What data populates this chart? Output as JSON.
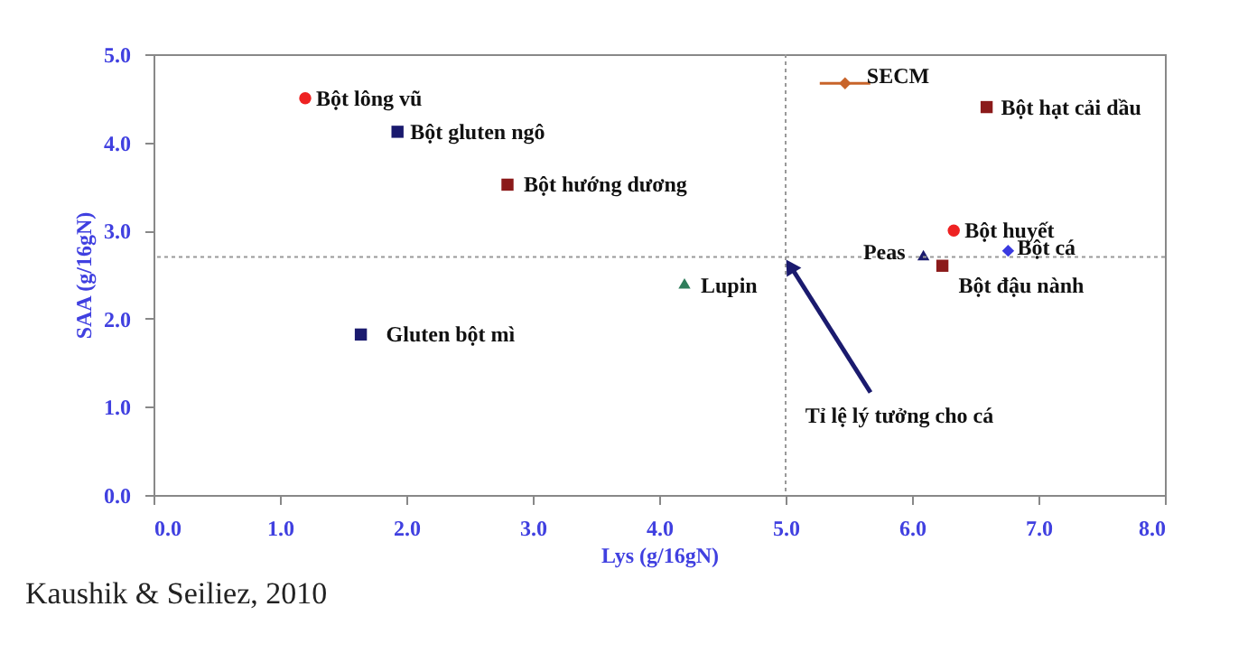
{
  "chart_data": {
    "type": "scatter",
    "xlabel": "Lys (g/16gN)",
    "ylabel": "SAA (g/16gN)",
    "xlim": [
      0,
      8
    ],
    "ylim": [
      0,
      5
    ],
    "xticks": [
      {
        "value": 0,
        "label": "0.0"
      },
      {
        "value": 1,
        "label": "1.0"
      },
      {
        "value": 2,
        "label": "2.0"
      },
      {
        "value": 3,
        "label": "3.0"
      },
      {
        "value": 4,
        "label": "4.0"
      },
      {
        "value": 5,
        "label": "5.0"
      },
      {
        "value": 6,
        "label": "6.0"
      },
      {
        "value": 7,
        "label": "7.0"
      },
      {
        "value": 8,
        "label": "8.0"
      }
    ],
    "yticks": [
      {
        "value": 0,
        "label": "0.0"
      },
      {
        "value": 1,
        "label": "1.0"
      },
      {
        "value": 2,
        "label": "2.0"
      },
      {
        "value": 3,
        "label": "3.0"
      },
      {
        "value": 4,
        "label": "4.0"
      },
      {
        "value": 5,
        "label": "5.0"
      }
    ],
    "grid": false,
    "legend": false,
    "series": [
      {
        "name": "Bột lông vũ",
        "color": "#ee2222",
        "marker": "circle",
        "x": [
          1.2
        ],
        "values": [
          4.5
        ]
      },
      {
        "name": "Bột gluten ngô",
        "color": "#1a1a6e",
        "marker": "square",
        "x": [
          1.93
        ],
        "values": [
          4.12
        ]
      },
      {
        "name": "Bột hướng dương",
        "color": "#8b1a1a",
        "marker": "square",
        "x": [
          2.8
        ],
        "values": [
          3.52
        ]
      },
      {
        "name": "Gluten bột mì",
        "color": "#1a1a6e",
        "marker": "square",
        "x": [
          1.64
        ],
        "values": [
          1.82
        ]
      },
      {
        "name": "SECM",
        "color": "#c8642a",
        "marker": "diamond",
        "x": [
          5.47
        ],
        "values": [
          4.67
        ],
        "xerrors": [
          0.2
        ]
      },
      {
        "name": "Bột hạt cải dầu",
        "color": "#8b1a1a",
        "marker": "square",
        "x": [
          6.59
        ],
        "values": [
          4.4
        ]
      },
      {
        "name": "Bột huyết",
        "color": "#ee2222",
        "marker": "circle",
        "x": [
          6.33
        ],
        "values": [
          3.0
        ]
      },
      {
        "name": "Bột cá",
        "color": "#3a3ae0",
        "marker": "diamond",
        "x": [
          6.76
        ],
        "values": [
          2.77
        ]
      },
      {
        "name": "Peas",
        "color": "#1a1a6e",
        "marker": "triangle",
        "x": [
          6.09
        ],
        "values": [
          2.72
        ]
      },
      {
        "name": "Bột đậu nành",
        "color": "#8b1a1a",
        "marker": "square",
        "x": [
          6.24
        ],
        "values": [
          2.6
        ]
      },
      {
        "name": "Lupin",
        "color": "#2e7d5b",
        "marker": "triangle",
        "x": [
          4.2
        ],
        "values": [
          2.4
        ]
      }
    ],
    "ref_lines": [
      {
        "axis": "x",
        "value": 5.0,
        "line_style": "dotted"
      },
      {
        "axis": "y",
        "value": 2.7,
        "line_style": "dotted"
      }
    ],
    "annotations": [
      {
        "text": "Tỉ lệ lý tưởng cho cá",
        "x": 5.0,
        "y": 2.7
      },
      "Kaushik & Seiliez, 2010"
    ]
  }
}
